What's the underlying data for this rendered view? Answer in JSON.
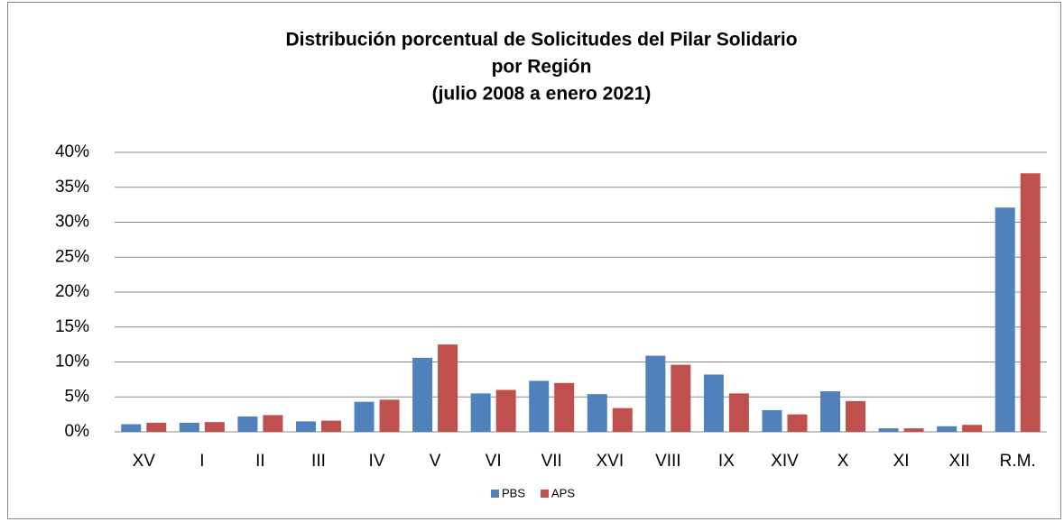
{
  "chart_data": {
    "type": "bar",
    "title": [
      "Distribución porcentual de Solicitudes del Pilar Solidario",
      "por Región",
      "(julio 2008 a enero 2021)"
    ],
    "categories": [
      "XV",
      "I",
      "II",
      "III",
      "IV",
      "V",
      "VI",
      "VII",
      "XVI",
      "VIII",
      "IX",
      "XIV",
      "X",
      "XI",
      "XII",
      "R.M."
    ],
    "series": [
      {
        "name": "PBS",
        "color": "#4f81bd",
        "values": [
          1.1,
          1.3,
          2.2,
          1.5,
          4.3,
          10.6,
          5.5,
          7.3,
          5.4,
          10.9,
          8.2,
          3.1,
          5.8,
          0.5,
          0.8,
          32.1
        ]
      },
      {
        "name": "APS",
        "color": "#c0504d",
        "values": [
          1.3,
          1.4,
          2.4,
          1.6,
          4.6,
          12.5,
          6.0,
          7.0,
          3.4,
          9.6,
          5.5,
          2.5,
          4.4,
          0.5,
          1.0,
          37.0
        ]
      }
    ],
    "ylim": [
      0,
      40
    ],
    "yticks": [
      {
        "value": 0,
        "label": "0%"
      },
      {
        "value": 5,
        "label": "5%"
      },
      {
        "value": 10,
        "label": "10%"
      },
      {
        "value": 15,
        "label": "15%"
      },
      {
        "value": 20,
        "label": "20%"
      },
      {
        "value": 25,
        "label": "25%"
      },
      {
        "value": 30,
        "label": "30%"
      },
      {
        "value": 35,
        "label": "35%"
      },
      {
        "value": 40,
        "label": "40%"
      }
    ],
    "grid": true,
    "legend": "bottom"
  }
}
